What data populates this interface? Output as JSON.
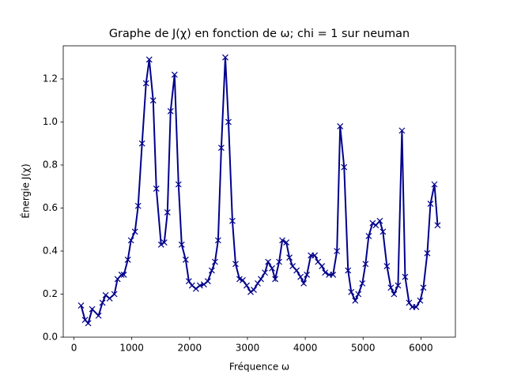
{
  "chart_data": {
    "type": "line",
    "title": "Graphe de J(χ) en fonction de ω; chi = 1 sur neuman",
    "x_label": "Fréquence ω",
    "y_label": "Énergie J(χ)",
    "color": "#00008b",
    "marker": "x",
    "x": [
      123,
      192,
      247,
      315,
      425,
      493,
      548,
      617,
      699,
      754,
      822,
      863,
      932,
      986,
      1055,
      1110,
      1178,
      1247,
      1302,
      1370,
      1425,
      1507,
      1562,
      1617,
      1671,
      1740,
      1808,
      1863,
      1932,
      1987,
      2041,
      2110,
      2178,
      2247,
      2315,
      2384,
      2439,
      2493,
      2548,
      2617,
      2672,
      2740,
      2795,
      2863,
      2918,
      2987,
      3055,
      3110,
      3178,
      3233,
      3302,
      3357,
      3425,
      3480,
      3548,
      3603,
      3672,
      3726,
      3781,
      3850,
      3918,
      3973,
      4028,
      4096,
      4165,
      4220,
      4288,
      4343,
      4411,
      4480,
      4548,
      4603,
      4672,
      4740,
      4795,
      4864,
      4918,
      4987,
      5042,
      5097,
      5165,
      5220,
      5289,
      5343,
      5412,
      5480,
      5535,
      5604,
      5672,
      5727,
      5795,
      5850,
      5918,
      5987,
      6042,
      6110,
      6165,
      6234,
      6288
    ],
    "values": [
      0.147,
      0.08,
      0.065,
      0.13,
      0.1,
      0.16,
      0.195,
      0.18,
      0.2,
      0.27,
      0.29,
      0.29,
      0.36,
      0.45,
      0.49,
      0.61,
      0.9,
      1.18,
      1.29,
      1.1,
      0.69,
      0.43,
      0.44,
      0.58,
      1.05,
      1.22,
      0.71,
      0.43,
      0.36,
      0.26,
      0.24,
      0.225,
      0.24,
      0.245,
      0.26,
      0.31,
      0.35,
      0.45,
      0.88,
      1.3,
      1.0,
      0.54,
      0.34,
      0.27,
      0.265,
      0.24,
      0.21,
      0.22,
      0.25,
      0.27,
      0.3,
      0.35,
      0.32,
      0.27,
      0.35,
      0.45,
      0.44,
      0.37,
      0.33,
      0.31,
      0.28,
      0.25,
      0.29,
      0.38,
      0.38,
      0.35,
      0.33,
      0.3,
      0.29,
      0.29,
      0.4,
      0.98,
      0.79,
      0.31,
      0.21,
      0.17,
      0.2,
      0.25,
      0.34,
      0.47,
      0.53,
      0.52,
      0.54,
      0.49,
      0.33,
      0.23,
      0.2,
      0.24,
      0.96,
      0.28,
      0.16,
      0.14,
      0.14,
      0.17,
      0.23,
      0.39,
      0.62,
      0.71,
      0.52
    ],
    "xlim": [
      -185,
      6596
    ],
    "ylim": [
      0,
      1.354
    ],
    "xticks": [
      0,
      1000,
      2000,
      3000,
      4000,
      5000,
      6000
    ],
    "yticks": [
      {
        "value": 0,
        "label": "0.0"
      },
      0.2,
      0.4,
      0.6,
      0.8,
      {
        "value": 1,
        "label": "1.0"
      },
      1.2
    ]
  }
}
